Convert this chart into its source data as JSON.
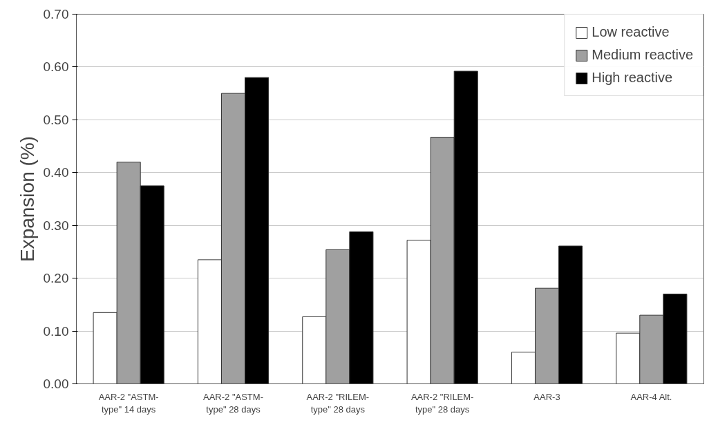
{
  "chart_data": {
    "type": "bar",
    "ylabel": "Expansion (%)",
    "categories": [
      "AAR-2 \"ASTM-\ntype\" 14 days",
      "AAR-2 \"ASTM-\ntype\" 28 days",
      "AAR-2 \"RILEM-\ntype\" 28 days",
      "AAR-2 \"RILEM-\ntype\" 28 days",
      "AAR-3",
      "AAR-4 Alt."
    ],
    "series": [
      {
        "name": "Low reactive",
        "color": "#ffffff",
        "values": [
          0.135,
          0.235,
          0.127,
          0.272,
          0.06,
          0.096
        ]
      },
      {
        "name": "Medium reactive",
        "color": "#a0a0a0",
        "values": [
          0.42,
          0.55,
          0.254,
          0.467,
          0.181,
          0.13
        ]
      },
      {
        "name": "High reactive",
        "color": "#000000",
        "values": [
          0.375,
          0.58,
          0.288,
          0.592,
          0.261,
          0.17
        ]
      }
    ],
    "ylim": [
      0,
      0.7
    ],
    "yticks": [
      {
        "value": 0,
        "label": "0.00"
      },
      {
        "value": 0.1,
        "label": "0.10"
      },
      {
        "value": 0.2,
        "label": "0.20"
      },
      {
        "value": 0.3,
        "label": "0.30"
      },
      {
        "value": 0.4,
        "label": "0.40"
      },
      {
        "value": 0.5,
        "label": "0.50"
      },
      {
        "value": 0.6,
        "label": "0.60"
      },
      {
        "value": 0.7,
        "label": "0.70"
      }
    ],
    "grid": "y",
    "legend": "top right"
  }
}
